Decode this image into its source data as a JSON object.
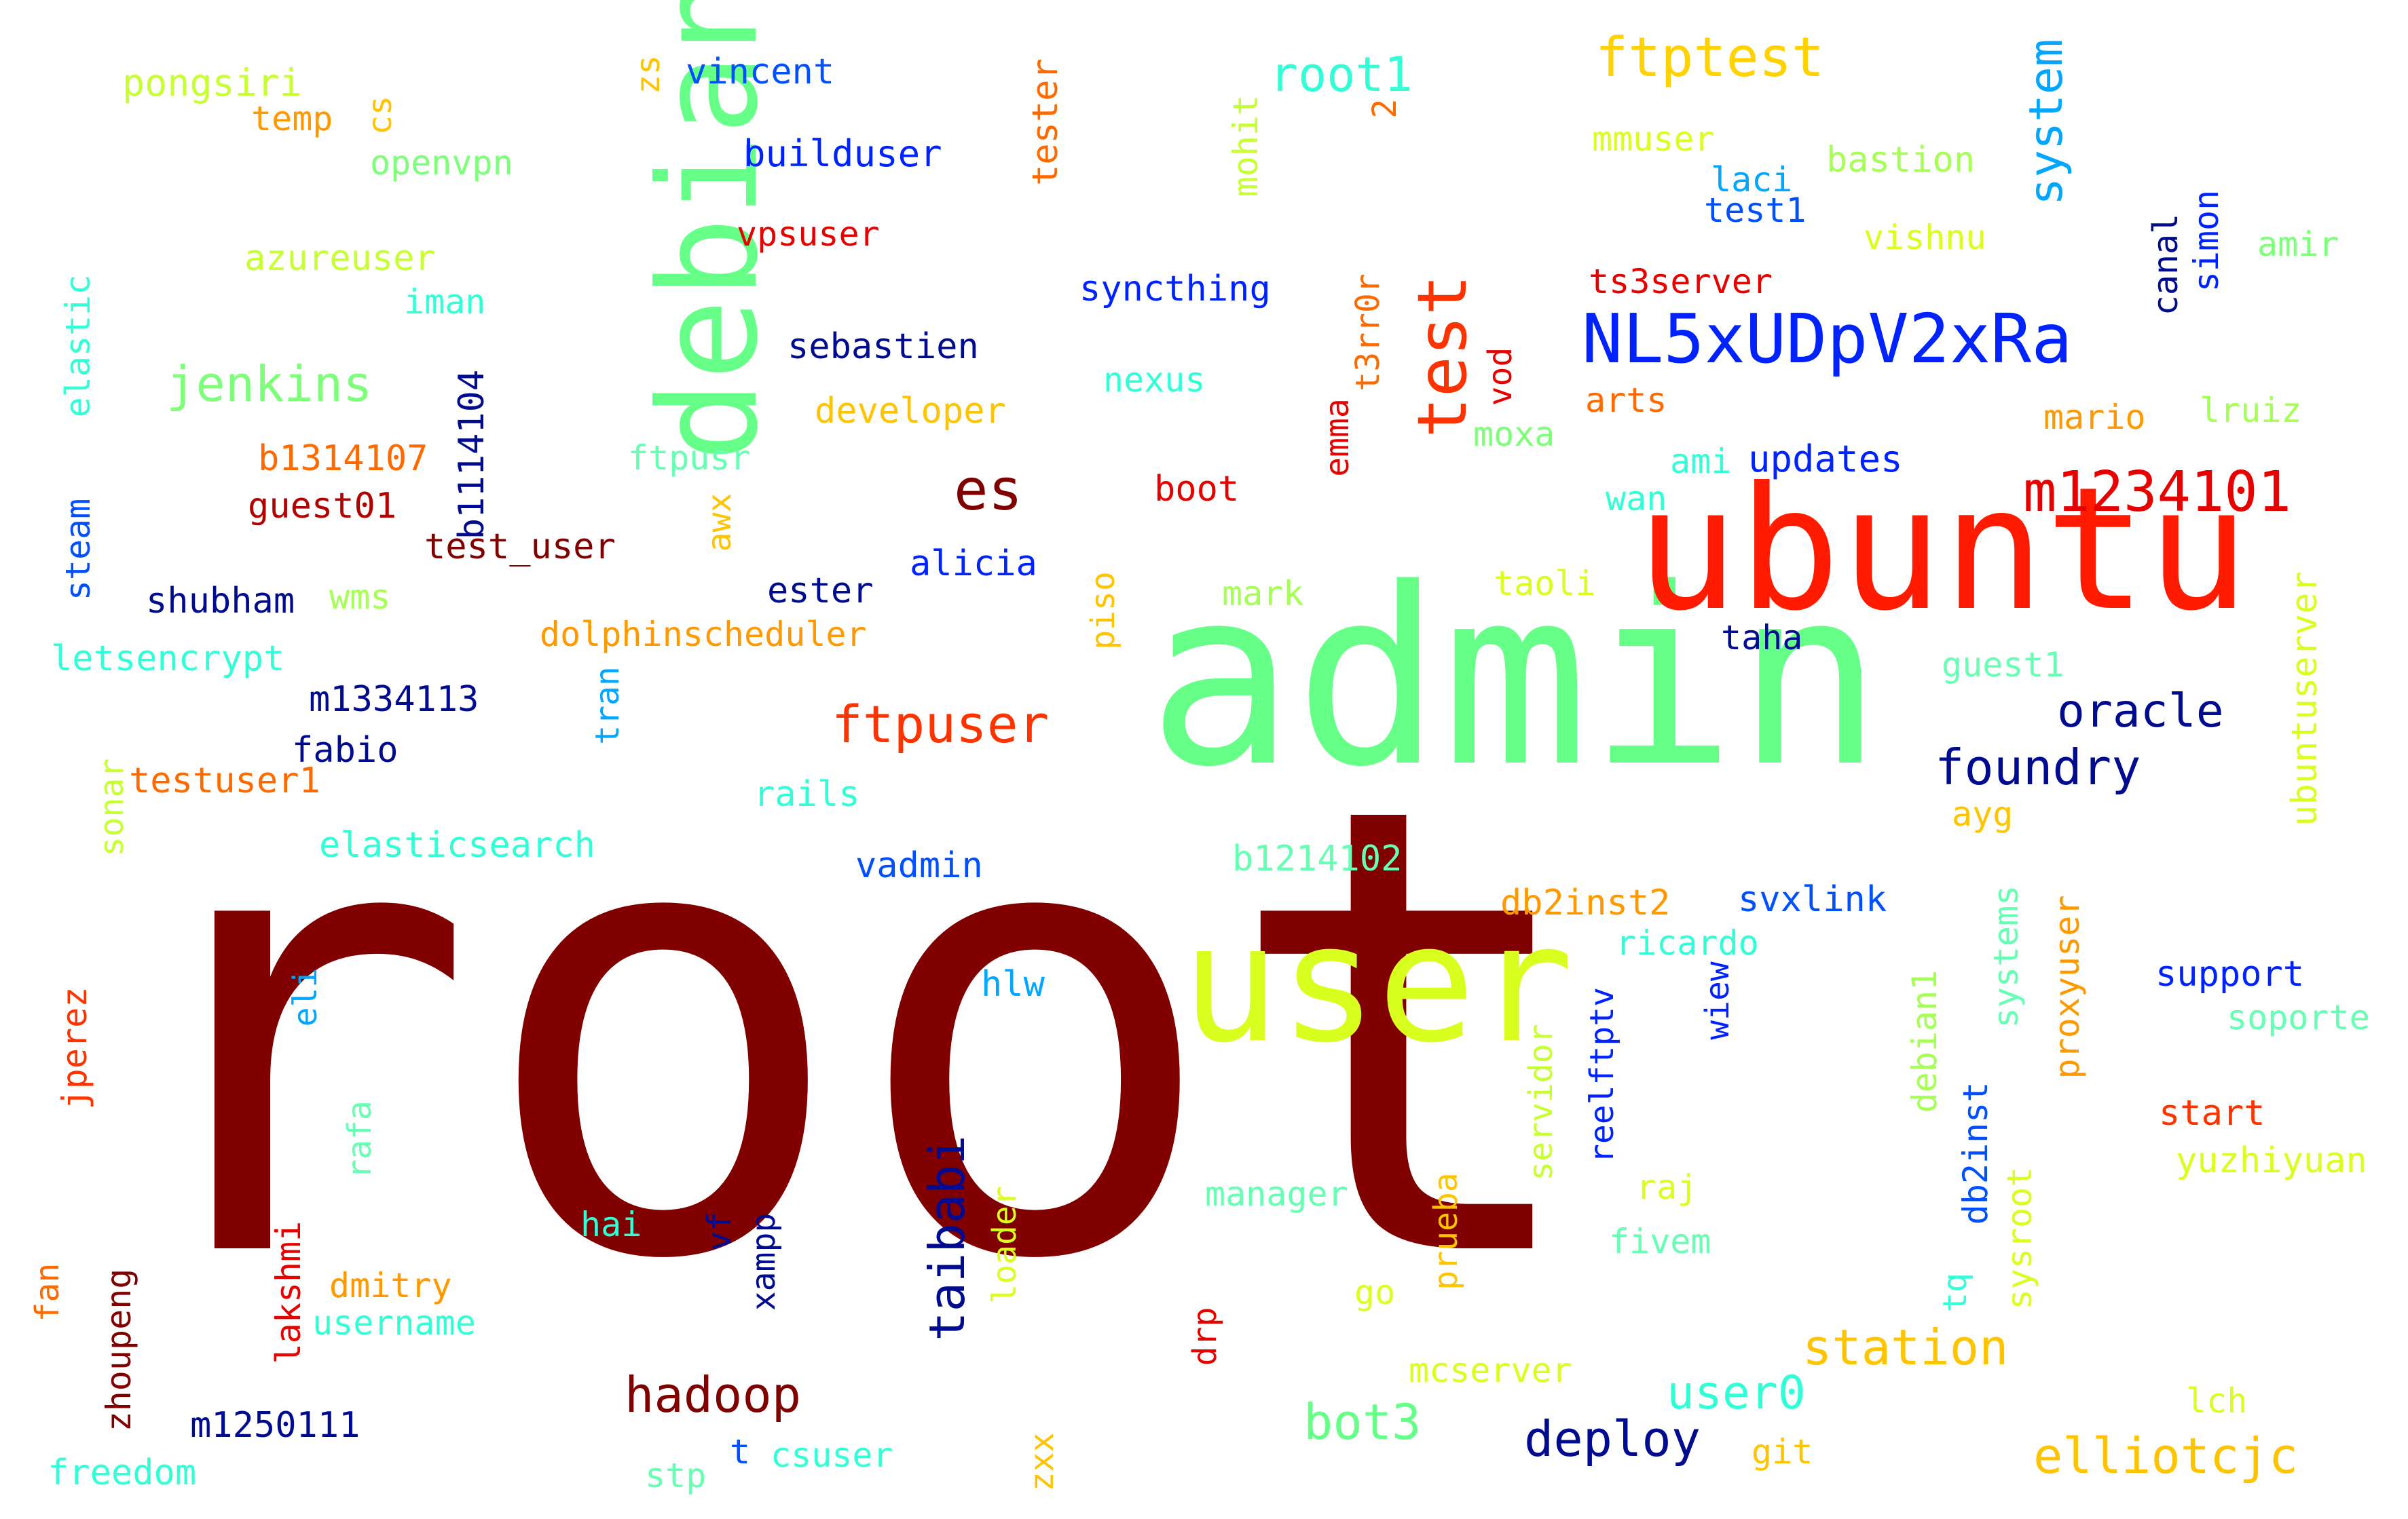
{
  "words": [
    {
      "text": "root",
      "color": "#800000"
    },
    {
      "text": "admin",
      "color": "#66ff88"
    },
    {
      "text": "ubuntu",
      "color": "#ff1a00"
    },
    {
      "text": "user",
      "color": "#d9ff1f"
    },
    {
      "text": "debian",
      "color": "#66ff88"
    },
    {
      "text": "NL5xUDpV2xRa",
      "color": "#0022ff"
    },
    {
      "text": "test",
      "color": "#ff3300"
    },
    {
      "text": "m1234101",
      "color": "#e60000"
    },
    {
      "text": "ftptest",
      "color": "#ffd200"
    },
    {
      "text": "root1",
      "color": "#33ffd6"
    },
    {
      "text": "system",
      "color": "#00a6ff"
    },
    {
      "text": "jenkins",
      "color": "#7dff7a"
    },
    {
      "text": "es",
      "color": "#800000"
    },
    {
      "text": "ftpuser",
      "color": "#ff3300"
    },
    {
      "text": "foundry",
      "color": "#000b8f"
    },
    {
      "text": "oracle",
      "color": "#000b8f"
    },
    {
      "text": "taibabi",
      "color": "#000b8f"
    },
    {
      "text": "hadoop",
      "color": "#800000"
    },
    {
      "text": "deploy",
      "color": "#000b8f"
    },
    {
      "text": "bot3",
      "color": "#66ff88"
    },
    {
      "text": "user0",
      "color": "#33ffd6"
    },
    {
      "text": "station",
      "color": "#ffc400"
    },
    {
      "text": "elliotcjc",
      "color": "#ffc400"
    },
    {
      "text": "pongsiri",
      "color": "#c8ff33"
    },
    {
      "text": "temp",
      "color": "#ff9900"
    },
    {
      "text": "cs",
      "color": "#ffc400"
    },
    {
      "text": "openvpn",
      "color": "#7dff7a"
    },
    {
      "text": "zs",
      "color": "#ffc400"
    },
    {
      "text": "vincent",
      "color": "#0050ff"
    },
    {
      "text": "builduser",
      "color": "#0022ff"
    },
    {
      "text": "tester",
      "color": "#ff6a00"
    },
    {
      "text": "mohit",
      "color": "#c8ff33"
    },
    {
      "text": "2",
      "color": "#ff6a00"
    },
    {
      "text": "vpsuser",
      "color": "#e60000"
    },
    {
      "text": "azureuser",
      "color": "#c8ff33"
    },
    {
      "text": "iman",
      "color": "#33ffd6"
    },
    {
      "text": "elastic",
      "color": "#33ffd6"
    },
    {
      "text": "syncthing",
      "color": "#0022ff"
    },
    {
      "text": "t3rr0r",
      "color": "#ff6a00"
    },
    {
      "text": "sebastien",
      "color": "#000b8f"
    },
    {
      "text": "nexus",
      "color": "#33ffd6"
    },
    {
      "text": "b1114104",
      "color": "#000b8f"
    },
    {
      "text": "developer",
      "color": "#ffc400"
    },
    {
      "text": "b1314107",
      "color": "#ff6a00"
    },
    {
      "text": "ftpusr",
      "color": "#66ffb3"
    },
    {
      "text": "emma",
      "color": "#e60000"
    },
    {
      "text": "vod",
      "color": "#e60000"
    },
    {
      "text": "moxa",
      "color": "#7dff7a"
    },
    {
      "text": "arts",
      "color": "#ff6a00"
    },
    {
      "text": "ts3server",
      "color": "#e60000"
    },
    {
      "text": "mmuser",
      "color": "#d9ff1f"
    },
    {
      "text": "laci",
      "color": "#00a6ff"
    },
    {
      "text": "test1",
      "color": "#0050ff"
    },
    {
      "text": "bastion",
      "color": "#a6ff55"
    },
    {
      "text": "vishnu",
      "color": "#d9ff1f"
    },
    {
      "text": "canal",
      "color": "#000b8f"
    },
    {
      "text": "simon",
      "color": "#0022ff"
    },
    {
      "text": "amir",
      "color": "#7dff7a"
    },
    {
      "text": "mario",
      "color": "#ff9900"
    },
    {
      "text": "lruiz",
      "color": "#a6ff55"
    },
    {
      "text": "guest01",
      "color": "#b30000"
    },
    {
      "text": "test_user",
      "color": "#800000"
    },
    {
      "text": "steam",
      "color": "#0050ff"
    },
    {
      "text": "shubham",
      "color": "#000b8f"
    },
    {
      "text": "wms",
      "color": "#a6ff55"
    },
    {
      "text": "awx",
      "color": "#ffc400"
    },
    {
      "text": "boot",
      "color": "#e60000"
    },
    {
      "text": "ami",
      "color": "#33ffd6"
    },
    {
      "text": "updates",
      "color": "#0022ff"
    },
    {
      "text": "wan",
      "color": "#33ffd6"
    },
    {
      "text": "letsencrypt",
      "color": "#33ffd6"
    },
    {
      "text": "ester",
      "color": "#000b8f"
    },
    {
      "text": "alicia",
      "color": "#0022ff"
    },
    {
      "text": "piso",
      "color": "#ffc400"
    },
    {
      "text": "mark",
      "color": "#a6ff55"
    },
    {
      "text": "taoli",
      "color": "#d9ff1f"
    },
    {
      "text": "taha",
      "color": "#000b8f"
    },
    {
      "text": "dolphinscheduler",
      "color": "#ff9900"
    },
    {
      "text": "ubuntuserver",
      "color": "#d9ff1f"
    },
    {
      "text": "m1334113",
      "color": "#000b8f"
    },
    {
      "text": "tran",
      "color": "#00a6ff"
    },
    {
      "text": "guest1",
      "color": "#66ffb3"
    },
    {
      "text": "fabio",
      "color": "#000b8f"
    },
    {
      "text": "testuser1",
      "color": "#ff6a00"
    },
    {
      "text": "sonar",
      "color": "#c8ff33"
    },
    {
      "text": "rails",
      "color": "#33ffd6"
    },
    {
      "text": "ayg",
      "color": "#ffc400"
    },
    {
      "text": "elasticsearch",
      "color": "#33ffd6"
    },
    {
      "text": "vadmin",
      "color": "#0050ff"
    },
    {
      "text": "b1214102",
      "color": "#66ffb3"
    },
    {
      "text": "db2inst2",
      "color": "#ff9900"
    },
    {
      "text": "svxlink",
      "color": "#0050ff"
    },
    {
      "text": "ricardo",
      "color": "#33ffd6"
    },
    {
      "text": "systems",
      "color": "#66ffb3"
    },
    {
      "text": "proxyuser",
      "color": "#ff9900"
    },
    {
      "text": "support",
      "color": "#0022ff"
    },
    {
      "text": "soporte",
      "color": "#66ffb3"
    },
    {
      "text": "jperez",
      "color": "#ff3300"
    },
    {
      "text": "eli",
      "color": "#00a6ff"
    },
    {
      "text": "hlw",
      "color": "#00a6ff"
    },
    {
      "text": "wiew",
      "color": "#0022ff"
    },
    {
      "text": "reelftptv",
      "color": "#0022ff"
    },
    {
      "text": "servidor",
      "color": "#c8ff33"
    },
    {
      "text": "debian1",
      "color": "#a6ff55"
    },
    {
      "text": "db2inst",
      "color": "#0050ff"
    },
    {
      "text": "start",
      "color": "#ff3300"
    },
    {
      "text": "yuzhiyuan",
      "color": "#d9ff1f"
    },
    {
      "text": "rafa",
      "color": "#66ffb3"
    },
    {
      "text": "hai",
      "color": "#33ffd6"
    },
    {
      "text": "vf",
      "color": "#000b8f"
    },
    {
      "text": "xampp",
      "color": "#000b8f"
    },
    {
      "text": "manager",
      "color": "#66ffb3"
    },
    {
      "text": "prueba",
      "color": "#ffc400"
    },
    {
      "text": "raj",
      "color": "#d9ff1f"
    },
    {
      "text": "fivem",
      "color": "#66ffb3"
    },
    {
      "text": "tq",
      "color": "#33ffd6"
    },
    {
      "text": "sysroot",
      "color": "#d9ff1f"
    },
    {
      "text": "fan",
      "color": "#ff6a00"
    },
    {
      "text": "lakshmi",
      "color": "#e60000"
    },
    {
      "text": "dmitry",
      "color": "#ff9900"
    },
    {
      "text": "username",
      "color": "#33ffd6"
    },
    {
      "text": "loader",
      "color": "#d9ff1f"
    },
    {
      "text": "drp",
      "color": "#e60000"
    },
    {
      "text": "go",
      "color": "#d9ff1f"
    },
    {
      "text": "zhoupeng",
      "color": "#800000"
    },
    {
      "text": "mcserver",
      "color": "#d9ff1f"
    },
    {
      "text": "lch",
      "color": "#d9ff1f"
    },
    {
      "text": "m1250111",
      "color": "#000b8f"
    },
    {
      "text": "freedom",
      "color": "#33ffd6"
    },
    {
      "text": "stp",
      "color": "#66ffb3"
    },
    {
      "text": "t",
      "color": "#0050ff"
    },
    {
      "text": "csuser",
      "color": "#33ffd6"
    },
    {
      "text": "zxx",
      "color": "#ffc400"
    },
    {
      "text": "git",
      "color": "#ffc400"
    }
  ]
}
